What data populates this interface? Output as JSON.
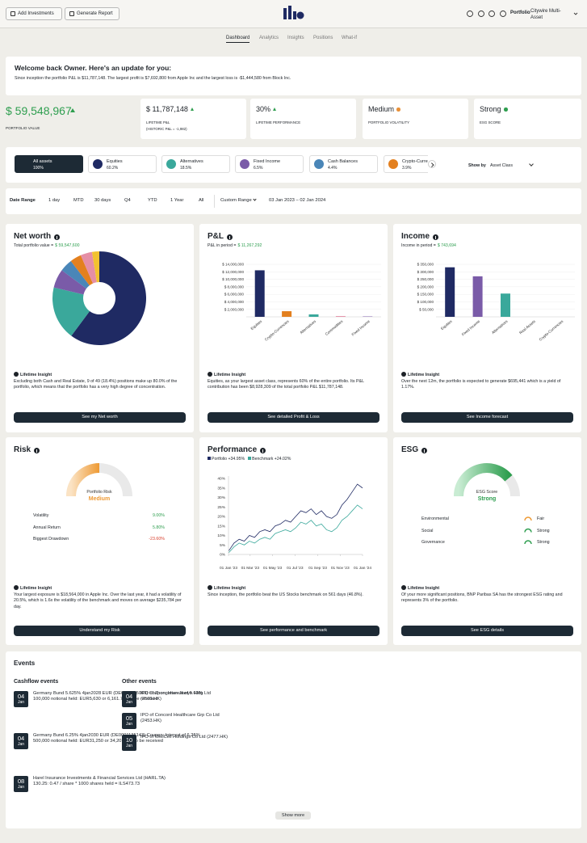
{
  "header": {
    "buttons": [
      "Add Investments",
      "Generate Report"
    ],
    "portfolio_label": "Portfolio",
    "portfolio_name": "Citywire Multi-Asset"
  },
  "nav": [
    "Dashboard",
    "Analytics",
    "Insights",
    "Positions",
    "What-if"
  ],
  "welcome": {
    "title": "Welcome back Owner. Here's an update for you:",
    "text": "Since inception the portfolio P&L is $11,787,148. The largest profit is $7,692,800 from Apple Inc and the largest loss is -$1,444,580 from Block Inc."
  },
  "portfolio_value": {
    "value": "$ 59,548,967",
    "label": "PORTFOLIO VALUE"
  },
  "kpis": [
    {
      "value": "$ 11,787,148",
      "label": "LIFETIME P&L",
      "note": "(HISTORIC P&L = -1,982)"
    },
    {
      "value": "30%",
      "label": "LIFETIME PERFORMANCE"
    },
    {
      "value": "Medium",
      "label": "PORTFOLIO VOLATILITY"
    },
    {
      "value": "Strong",
      "label": "ESG SCORE"
    }
  ],
  "asset_tabs": [
    {
      "name": "All assets",
      "share": "100%"
    },
    {
      "name": "Equities",
      "share": "60.2%"
    },
    {
      "name": "Alternatives",
      "share": "18.5%"
    },
    {
      "name": "Fixed Income",
      "share": "6.5%"
    },
    {
      "name": "Cash Balances",
      "share": "4.4%"
    },
    {
      "name": "Crypto-Currencies",
      "share": "3.9%"
    }
  ],
  "show_by": {
    "label": "Show by",
    "value": "Asset Class"
  },
  "date_range": {
    "label": "Date Range",
    "options": [
      "1 day",
      "MTD",
      "30 days",
      "Q4",
      "YTD",
      "1 Year",
      "All"
    ],
    "custom": "Custom Range",
    "period": "03 Jan 2023 – 02 Jan 2024"
  },
  "chart_data": [
    {
      "type": "pie",
      "title": "Net worth",
      "subtitle": "Total portfolio value =",
      "subtitle_value": "$ 59,547,600",
      "values": [
        60.2,
        18.5,
        6.5,
        4.4,
        3.9,
        4,
        2.5
      ],
      "colors": [
        "#1f2a63",
        "#3aa89b",
        "#7a5ba8",
        "#4a86b8",
        "#e3801f",
        "#e58fa6",
        "#f2c230"
      ],
      "insight_heading": "Lifetime Insight",
      "insight": "Excluding both Cash and Real Estate, 9 of 49 (18.4%) positions make up 80.0% of the portfolio, which means that the portfolio has a very high degree of concentration.",
      "button": "See my Net worth"
    },
    {
      "type": "bar",
      "title": "P&L",
      "subtitle": "P&L in period =",
      "subtitle_value": "$ 11,267,292",
      "categories": [
        "Equities",
        "Crypto-Currencies",
        "Alternatives",
        "Commodities",
        "Fixed Income"
      ],
      "values": [
        12400000,
        1500000,
        650000,
        200000,
        100000
      ],
      "colors": [
        "#1f2a63",
        "#e3801f",
        "#3aa89b",
        "#e58fa6",
        "#7a5ba8"
      ],
      "ylim": [
        0,
        14000000
      ],
      "yticks": [
        {
          "value": 2000000,
          "label": "$ 2,000,000"
        },
        {
          "value": 4000000,
          "label": "$ 4,000,000"
        },
        {
          "value": 6000000,
          "label": "$ 6,000,000"
        },
        {
          "value": 8000000,
          "label": "$ 8,000,000"
        },
        {
          "value": 10000000,
          "label": "$ 10,000,000"
        },
        {
          "value": 12000000,
          "label": "$ 12,000,000"
        },
        {
          "value": 14000000,
          "label": "$ 14,000,000"
        }
      ],
      "grid": true,
      "insight_heading": "Lifetime Insight",
      "insight": "Equities, as your largest asset class, represents 60% of the entire portfolio. Its P&L contribution has been $8,928,309 of the total portfolio P&L $11,787,148.",
      "button": "See detailed Profit & Loss"
    },
    {
      "type": "bar",
      "title": "Income",
      "subtitle": "Income in period =",
      "subtitle_value": "$ 743,694",
      "categories": [
        "Equities",
        "Fixed Income",
        "Alternatives",
        "Real Assets",
        "Crypto-Currencies"
      ],
      "values": [
        330000,
        270000,
        155000,
        0,
        0
      ],
      "colors": [
        "#1f2a63",
        "#7a5ba8",
        "#3aa89b",
        "#e58fa6",
        "#e3801f"
      ],
      "ylim": [
        0,
        350000
      ],
      "yticks": [
        {
          "value": 50000,
          "label": "$ 50,000"
        },
        {
          "value": 100000,
          "label": "$ 100,000"
        },
        {
          "value": 150000,
          "label": "$ 150,000"
        },
        {
          "value": 200000,
          "label": "$ 200,000"
        },
        {
          "value": 250000,
          "label": "$ 250,000"
        },
        {
          "value": 300000,
          "label": "$ 300,000"
        },
        {
          "value": 350000,
          "label": "$ 350,000"
        }
      ],
      "grid": true,
      "insight_heading": "Lifetime Insight",
      "insight": "Over the next 12m, the portfolio is expected to generate $695,441 which is a yield of 1.17%.",
      "button": "See Income forecast"
    },
    {
      "type": "line",
      "title": "Performance",
      "x": [
        "2023-01-02",
        "2023-01-16",
        "2023-01-30",
        "2023-02-13",
        "2023-02-27",
        "2023-03-13",
        "2023-03-27",
        "2023-04-10",
        "2023-04-24",
        "2023-05-08",
        "2023-05-22",
        "2023-06-05",
        "2023-06-19",
        "2023-07-03",
        "2023-07-17",
        "2023-07-31",
        "2023-08-14",
        "2023-08-28",
        "2023-09-11",
        "2023-09-25",
        "2023-10-09",
        "2023-10-23",
        "2023-11-06",
        "2023-11-20",
        "2023-12-04",
        "2023-12-18",
        "2024-01-01"
      ],
      "series": [
        {
          "name": "Portfolio +34.95%",
          "color": "#1f2a63",
          "values": [
            2,
            6,
            8,
            7,
            10,
            9,
            12,
            13,
            12,
            15,
            16,
            18,
            17,
            20,
            23,
            22,
            24,
            21,
            23,
            20,
            19,
            21,
            26,
            29,
            33,
            37,
            35
          ]
        },
        {
          "name": "Benchmark +24.02%",
          "color": "#3aa89b",
          "values": [
            1,
            4,
            6,
            5,
            7,
            6,
            8,
            9,
            8,
            11,
            12,
            13,
            12,
            14,
            17,
            16,
            18,
            15,
            16,
            13,
            12,
            14,
            18,
            20,
            23,
            26,
            24
          ]
        }
      ],
      "xlim": [
        "2023-01-01",
        "2024-01-01"
      ],
      "xticks": [
        {
          "value": "2023-01-01",
          "label": "01 Jan '23"
        },
        {
          "value": "2023-03-01",
          "label": "01 Mar '23"
        },
        {
          "value": "2023-05-01",
          "label": "01 May '23"
        },
        {
          "value": "2023-07-01",
          "label": "01 Jul '23"
        },
        {
          "value": "2023-09-01",
          "label": "01 Sep '23"
        },
        {
          "value": "2023-11-01",
          "label": "01 Nov '23"
        },
        {
          "value": "2024-01-01",
          "label": "01 Jan '24"
        }
      ],
      "ylim": [
        0,
        40
      ],
      "yticks": [
        {
          "value": 0,
          "label": "0%"
        },
        {
          "value": 5,
          "label": "5%"
        },
        {
          "value": 10,
          "label": "10%"
        },
        {
          "value": 15,
          "label": "15%"
        },
        {
          "value": 20,
          "label": "20%"
        },
        {
          "value": 25,
          "label": "25%"
        },
        {
          "value": 30,
          "label": "30%"
        },
        {
          "value": 35,
          "label": "35%"
        },
        {
          "value": 40,
          "label": "40%"
        }
      ],
      "grid": false,
      "insight_heading": "Lifetime Insight",
      "insight": "Since inception, the portfolio beat the US Stocks benchmark on 561 days (46.8%).",
      "button": "See performance and benchmark"
    }
  ],
  "risk": {
    "title": "Risk",
    "gauge_label": "Portfolio Risk",
    "gauge_value": "Medium",
    "rows": [
      [
        "Volatility",
        "9.00%"
      ],
      [
        "Annual Return",
        "5.80%"
      ],
      [
        "Biggest Drawdown",
        "-23.60%"
      ]
    ],
    "insight_heading": "Lifetime Insight",
    "insight": "Your largest exposure is $18,564,000 in Apple Inc. Over the last year, it had a volatility of 20.5%, which is 1.6x the volatility of the benchmark and moves on average $235,784 per day.",
    "button": "Understand my Risk"
  },
  "esg": {
    "title": "ESG",
    "gauge_label": "ESG Score",
    "gauge_value": "Strong",
    "rows": [
      [
        "Environmental",
        "Fair"
      ],
      [
        "Social",
        "Strong"
      ],
      [
        "Governance",
        "Strong"
      ]
    ],
    "insight_heading": "Lifetime Insight",
    "insight": "Of your more significant positions, BNP Paribas SA has the strongest ESG rating and represents 3% of the portfolio.",
    "button": "See ESG details"
  },
  "events": {
    "title": "Events",
    "cashflow": {
      "title": "Cashflow events",
      "items": [
        {
          "day": "04",
          "month": "Jan",
          "text": "Germany Bund 5.625% 4jan2028 EUR (DE0001135069) Coupon: Interest of 5.63%",
          "detail": "100,000 notional held: EUR5,630 or 6,161.754 to be received"
        },
        {
          "day": "04",
          "month": "Jan",
          "text": "Germany Bund 6.25% 4jan2030 EUR (DE0001135143) Coupon: Interest of 6.25%",
          "detail": "500,000 notional held: EUR31,250 or 34,201.563 to be received"
        },
        {
          "day": "08",
          "month": "Jan",
          "text": "Harel Insurance Investments & Financial Services Ltd (HARL.TA)",
          "detail": "130.25: 0.47 / share * 1000 shares held = ILS473.73"
        }
      ]
    },
    "other": {
      "title": "Other events",
      "items": [
        {
          "day": "04",
          "month": "Jan",
          "text": "IPO of Zhongshan Jianye Hldg Ltd (2503.HK)"
        },
        {
          "day": "05",
          "month": "Jan",
          "text": "IPO of Concord Healthcare Grp Co Ltd (2453.HK)"
        },
        {
          "day": "10",
          "month": "Jan",
          "text": "IPO of WellCell Holdings Co Ltd (2477.HK)"
        }
      ]
    },
    "button": "Show more"
  }
}
